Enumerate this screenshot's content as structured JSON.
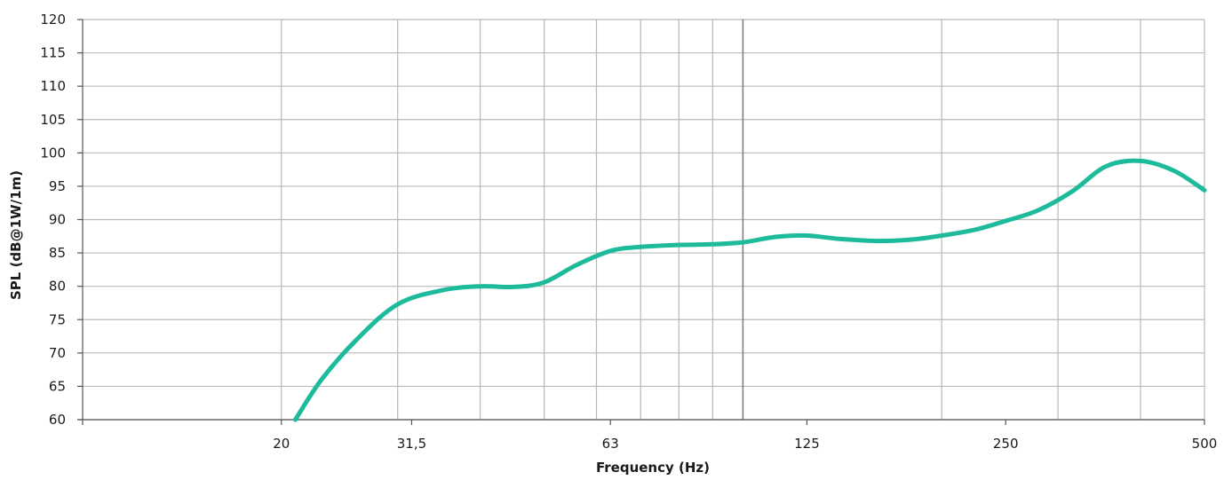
{
  "chart_data": {
    "type": "line",
    "title": "",
    "xlabel": "Frequency (Hz)",
    "ylabel": "SPL (dB@1W/1m)",
    "x_scale": "log",
    "xlim": [
      10,
      500
    ],
    "ylim": [
      60,
      120
    ],
    "y_ticks": [
      60,
      65,
      70,
      75,
      80,
      85,
      90,
      95,
      100,
      105,
      110,
      115,
      120
    ],
    "x_tick_labels": [
      {
        "value": 20,
        "label": "20"
      },
      {
        "value": 31.5,
        "label": "31,5"
      },
      {
        "value": 63,
        "label": "63"
      },
      {
        "value": 125,
        "label": "125"
      },
      {
        "value": 250,
        "label": "250"
      },
      {
        "value": 500,
        "label": "500"
      }
    ],
    "x_gridlines": [
      20,
      30,
      40,
      50,
      60,
      70,
      80,
      90,
      100,
      200,
      300,
      400,
      500
    ],
    "grid": true,
    "legend": "none",
    "colors": {
      "series": "#1dbb9b",
      "grid": "#b8b8b8",
      "axis": "#555555"
    },
    "series": [
      {
        "x": [
          21,
          23,
          26,
          30,
          35,
          40,
          45,
          50,
          56,
          63,
          70,
          80,
          90,
          100,
          112,
          125,
          140,
          160,
          180,
          200,
          225,
          250,
          280,
          315,
          355,
          400,
          450,
          500
        ],
        "values": [
          60,
          66,
          72,
          77.3,
          79.4,
          80.0,
          79.9,
          80.6,
          83.2,
          85.3,
          85.9,
          86.2,
          86.3,
          86.6,
          87.4,
          87.6,
          87.1,
          86.8,
          87.0,
          87.6,
          88.5,
          89.8,
          91.4,
          94.2,
          98.0,
          98.8,
          97.3,
          94.4
        ]
      }
    ]
  }
}
